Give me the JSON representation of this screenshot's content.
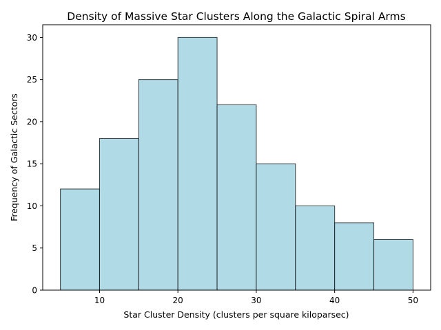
{
  "chart_data": {
    "type": "bar",
    "title": "Density of Massive Star Clusters Along the Galactic Spiral Arms",
    "xlabel": "Star Cluster Density (clusters per square kiloparsec)",
    "ylabel": "Frequency of Galactic Sectors",
    "bins": [
      {
        "start": 5,
        "end": 10,
        "value": 12
      },
      {
        "start": 10,
        "end": 15,
        "value": 18
      },
      {
        "start": 15,
        "end": 20,
        "value": 25
      },
      {
        "start": 20,
        "end": 25,
        "value": 30
      },
      {
        "start": 25,
        "end": 30,
        "value": 22
      },
      {
        "start": 30,
        "end": 35,
        "value": 15
      },
      {
        "start": 35,
        "end": 40,
        "value": 10
      },
      {
        "start": 40,
        "end": 45,
        "value": 8
      },
      {
        "start": 45,
        "end": 50,
        "value": 6
      }
    ],
    "xlim": [
      2.75,
      52.25
    ],
    "ylim": [
      0,
      31.5
    ],
    "xticks": [
      "10",
      "20",
      "30",
      "40",
      "50"
    ],
    "yticks": [
      "0",
      "5",
      "10",
      "15",
      "20",
      "25",
      "30"
    ],
    "grid": false,
    "colors": {
      "bar_fill": "#add8e6",
      "bar_edge": "#000000"
    }
  }
}
